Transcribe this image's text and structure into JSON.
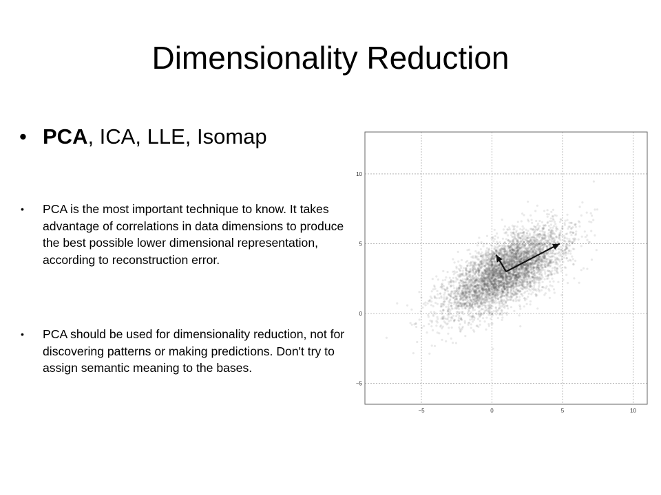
{
  "slide": {
    "title": "Dimensionality Reduction",
    "main_bullet": {
      "bold": "PCA",
      "rest": ", ICA, LLE, Isomap"
    },
    "sub_bullets": [
      "PCA is the most important technique to know.  It takes advantage of correlations in data dimensions to produce the best possible lower dimensional representation, according to reconstruction error.",
      "PCA should be used for dimensionality reduction, not for discovering patterns or making predictions. Don't try to assign semantic meaning to the bases."
    ]
  },
  "chart_data": {
    "type": "scatter",
    "title": "",
    "xlabel": "",
    "ylabel": "",
    "xlim": [
      -9,
      11
    ],
    "ylim": [
      -6.5,
      13
    ],
    "x_ticks": [
      -5,
      0,
      5,
      10
    ],
    "y_ticks": [
      -5,
      0,
      5,
      10
    ],
    "grid": true,
    "point_color": "#555555",
    "distribution": {
      "mean": [
        1,
        3
      ],
      "principal_axis_direction": [
        0.8,
        0.5
      ],
      "approx_count": 5000
    },
    "arrows": [
      {
        "from": [
          1,
          3
        ],
        "to": [
          4.8,
          5
        ]
      },
      {
        "from": [
          1,
          3
        ],
        "to": [
          0.3,
          4.2
        ]
      }
    ]
  }
}
